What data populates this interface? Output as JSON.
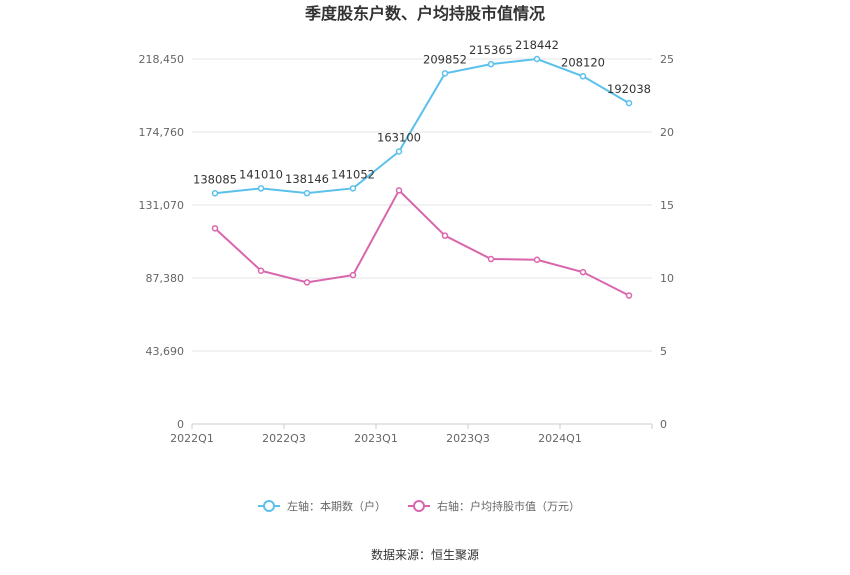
{
  "chart_data": {
    "type": "line",
    "title": "季度股东户数、户均持股市值情况",
    "categories": [
      "2022Q1",
      "2022Q2",
      "2022Q3",
      "2022Q4",
      "2023Q1",
      "2023Q2",
      "2023Q3",
      "2023Q4",
      "2024Q1",
      "2024Q2"
    ],
    "x_tick_labels": [
      "2022Q1",
      "2022Q3",
      "2023Q1",
      "2023Q3",
      "2024Q1"
    ],
    "y_left": {
      "ticks": [
        "0",
        "43,690",
        "87,380",
        "131,070",
        "174,760",
        "218,450"
      ],
      "ylim": [
        0,
        218450
      ]
    },
    "y_right": {
      "ticks": [
        "0",
        "5",
        "10",
        "15",
        "20",
        "25"
      ],
      "ylim": [
        0,
        25
      ]
    },
    "grid": true,
    "legend_position": "bottom",
    "series": [
      {
        "name": "左轴：本期数（户）",
        "axis": "left",
        "color": "#5bc0eb",
        "values": [
          138085,
          141010,
          138146,
          141052,
          163100,
          209852,
          215365,
          218442,
          208120,
          192038
        ],
        "labels": [
          "138085",
          "141010",
          "138146",
          "141052",
          "163100",
          "209852",
          "215365",
          "218442",
          "208120",
          "192038"
        ]
      },
      {
        "name": "右轴：户均持股市值（万元）",
        "axis": "right",
        "color": "#d966ad",
        "values": [
          13.4,
          10.5,
          9.7,
          10.2,
          16.0,
          12.9,
          11.3,
          11.25,
          10.4,
          8.8
        ]
      }
    ],
    "source": "数据来源：恒生聚源"
  }
}
